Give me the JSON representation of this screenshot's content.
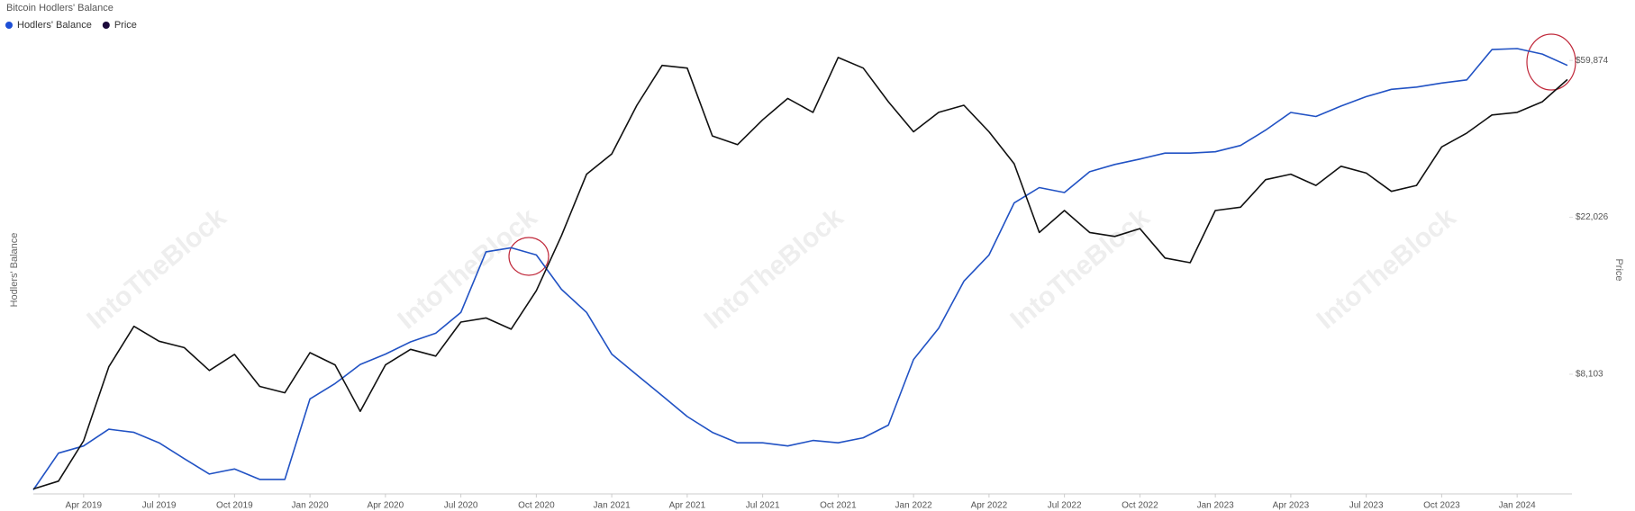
{
  "chart_data": {
    "type": "line",
    "title": "Bitcoin Hodlers' Balance",
    "ylabel": "Hodlers' Balance",
    "y2label": "Price",
    "watermark": "IntoTheBlock",
    "x": [
      "2019-02",
      "2019-03",
      "2019-04",
      "2019-05",
      "2019-06",
      "2019-07",
      "2019-08",
      "2019-09",
      "2019-10",
      "2019-11",
      "2019-12",
      "2020-01",
      "2020-02",
      "2020-03",
      "2020-04",
      "2020-05",
      "2020-06",
      "2020-07",
      "2020-08",
      "2020-09",
      "2020-10",
      "2020-11",
      "2020-12",
      "2021-01",
      "2021-02",
      "2021-03",
      "2021-04",
      "2021-05",
      "2021-06",
      "2021-07",
      "2021-08",
      "2021-09",
      "2021-10",
      "2021-11",
      "2021-12",
      "2022-01",
      "2022-02",
      "2022-03",
      "2022-04",
      "2022-05",
      "2022-06",
      "2022-07",
      "2022-08",
      "2022-09",
      "2022-10",
      "2022-11",
      "2022-12",
      "2023-01",
      "2023-02",
      "2023-03",
      "2023-04",
      "2023-05",
      "2023-06",
      "2023-07",
      "2023-08",
      "2023-09",
      "2023-10",
      "2023-11",
      "2023-12",
      "2024-01",
      "2024-02",
      "2024-03"
    ],
    "xlim": [
      "2019-02",
      "2024-03"
    ],
    "xticks": [
      {
        "value": "2019-04",
        "label": "Apr 2019"
      },
      {
        "value": "2019-07",
        "label": "Jul 2019"
      },
      {
        "value": "2019-10",
        "label": "Oct 2019"
      },
      {
        "value": "2020-01",
        "label": "Jan 2020"
      },
      {
        "value": "2020-04",
        "label": "Apr 2020"
      },
      {
        "value": "2020-07",
        "label": "Jul 2020"
      },
      {
        "value": "2020-10",
        "label": "Oct 2020"
      },
      {
        "value": "2021-01",
        "label": "Jan 2021"
      },
      {
        "value": "2021-04",
        "label": "Apr 2021"
      },
      {
        "value": "2021-07",
        "label": "Jul 2021"
      },
      {
        "value": "2021-10",
        "label": "Oct 2021"
      },
      {
        "value": "2022-01",
        "label": "Jan 2022"
      },
      {
        "value": "2022-04",
        "label": "Apr 2022"
      },
      {
        "value": "2022-07",
        "label": "Jul 2022"
      },
      {
        "value": "2022-10",
        "label": "Oct 2022"
      },
      {
        "value": "2023-01",
        "label": "Jan 2023"
      },
      {
        "value": "2023-04",
        "label": "Apr 2023"
      },
      {
        "value": "2023-07",
        "label": "Jul 2023"
      },
      {
        "value": "2023-10",
        "label": "Oct 2023"
      },
      {
        "value": "2024-01",
        "label": "Jan 2024"
      }
    ],
    "ylim": [
      0,
      100
    ],
    "y2lim": [
      3780,
      67600
    ],
    "y2log": true,
    "y2ticks": [
      {
        "value": 8103,
        "label": "$8,103"
      },
      {
        "value": 22026,
        "label": "$22,026"
      },
      {
        "value": 59874,
        "label": "$59,874"
      }
    ],
    "series": [
      {
        "name": "Hodlers' Balance",
        "color": "#2152c4",
        "legend_color": "#1d4fd6",
        "values": [
          0.9,
          9.0,
          10.6,
          14.3,
          13.6,
          11.3,
          7.8,
          4.4,
          5.5,
          3.2,
          3.2,
          21.0,
          24.4,
          28.6,
          30.9,
          33.6,
          35.5,
          40.1,
          53.5,
          54.4,
          52.8,
          45.2,
          40.1,
          30.9,
          26.3,
          21.7,
          17.1,
          13.6,
          11.3,
          11.3,
          10.6,
          11.8,
          11.3,
          12.4,
          15.2,
          29.7,
          36.6,
          47.0,
          52.8,
          64.3,
          67.7,
          66.6,
          71.2,
          72.8,
          74.0,
          75.3,
          75.3,
          75.6,
          77.0,
          80.4,
          84.3,
          83.4,
          85.7,
          87.8,
          89.4,
          89.9,
          90.8,
          91.5,
          98.2,
          98.4,
          97.2,
          94.7
        ]
      },
      {
        "name": "Price",
        "color": "#111111",
        "legend_color": "#1c0b3b",
        "axis": "y2",
        "values": [
          3900,
          4100,
          5300,
          8500,
          11000,
          10000,
          9600,
          8300,
          9200,
          7500,
          7200,
          9300,
          8600,
          6400,
          8600,
          9500,
          9100,
          11300,
          11600,
          10800,
          13800,
          19600,
          29000,
          33000,
          45000,
          58000,
          57000,
          37000,
          35000,
          41000,
          47000,
          43000,
          61000,
          57000,
          46000,
          38000,
          43000,
          45000,
          38000,
          31000,
          20000,
          23000,
          20000,
          19500,
          20500,
          17000,
          16500,
          23000,
          23500,
          28000,
          29000,
          27000,
          30500,
          29200,
          26000,
          27000,
          34500,
          37700,
          42300,
          43000,
          46000,
          53000
        ]
      }
    ]
  }
}
